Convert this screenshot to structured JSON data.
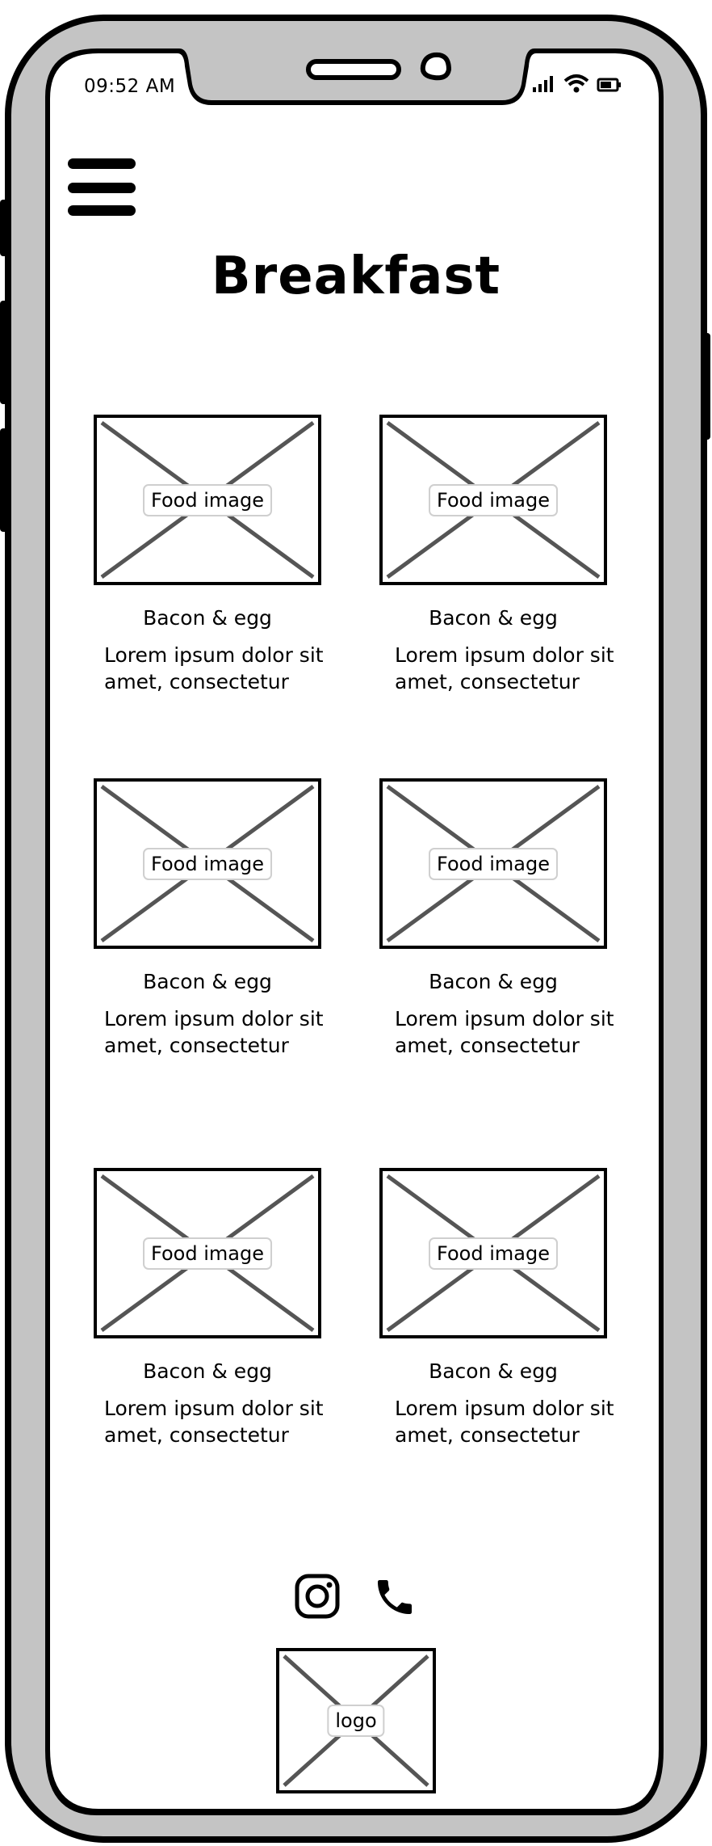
{
  "status_bar": {
    "time": "09:52 AM"
  },
  "page": {
    "title": "Breakfast"
  },
  "menu": {
    "icon": "hamburger-menu-icon"
  },
  "cards": [
    {
      "image_label": "Food image",
      "name": "Bacon & egg",
      "desc_line1": "Lorem ipsum dolor sit",
      "desc_line2": "amet, consectetur"
    },
    {
      "image_label": "Food image",
      "name": "Bacon & egg",
      "desc_line1": "Lorem ipsum dolor sit",
      "desc_line2": "amet, consectetur"
    },
    {
      "image_label": "Food image",
      "name": "Bacon & egg",
      "desc_line1": "Lorem ipsum dolor sit",
      "desc_line2": "amet, consectetur"
    },
    {
      "image_label": "Food image",
      "name": "Bacon & egg",
      "desc_line1": "Lorem ipsum dolor sit",
      "desc_line2": "amet, consectetur"
    },
    {
      "image_label": "Food image",
      "name": "Bacon & egg",
      "desc_line1": "Lorem ipsum dolor sit",
      "desc_line2": "amet, consectetur"
    },
    {
      "image_label": "Food image",
      "name": "Bacon & egg",
      "desc_line1": "Lorem ipsum dolor sit",
      "desc_line2": "amet, consectetur"
    }
  ],
  "footer": {
    "icons": [
      "instagram-icon",
      "phone-icon"
    ],
    "logo_label": "logo"
  },
  "colors": {
    "frame": "#c4c4c4",
    "outline": "#000000",
    "placeholder_cross": "#555555"
  }
}
